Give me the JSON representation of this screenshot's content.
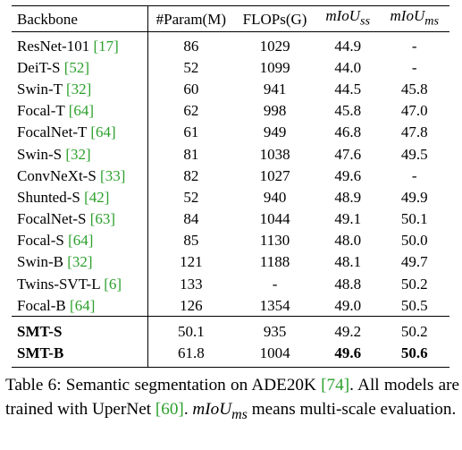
{
  "table": {
    "headers": [
      "Backbone",
      "#Param(M)",
      "FLOPs(G)",
      "mIoU",
      "mIoU"
    ],
    "header_subscripts": [
      "",
      "",
      "",
      "ss",
      "ms"
    ],
    "rows": [
      {
        "name": "ResNet-101",
        "ref": "[17]",
        "param": "86",
        "flops": "1029",
        "miou_ss": "44.9",
        "miou_ms": "-"
      },
      {
        "name": "DeiT-S",
        "ref": "[52]",
        "param": "52",
        "flops": "1099",
        "miou_ss": "44.0",
        "miou_ms": "-"
      },
      {
        "name": "Swin-T",
        "ref": "[32]",
        "param": "60",
        "flops": "941",
        "miou_ss": "44.5",
        "miou_ms": "45.8"
      },
      {
        "name": "Focal-T",
        "ref": "[64]",
        "param": "62",
        "flops": "998",
        "miou_ss": "45.8",
        "miou_ms": "47.0"
      },
      {
        "name": "FocalNet-T",
        "ref": "[64]",
        "param": "61",
        "flops": "949",
        "miou_ss": "46.8",
        "miou_ms": "47.8"
      },
      {
        "name": "Swin-S",
        "ref": "[32]",
        "param": "81",
        "flops": "1038",
        "miou_ss": "47.6",
        "miou_ms": "49.5"
      },
      {
        "name": "ConvNeXt-S",
        "ref": "[33]",
        "param": "82",
        "flops": "1027",
        "miou_ss": "49.6",
        "miou_ms": "-"
      },
      {
        "name": "Shunted-S",
        "ref": "[42]",
        "param": "52",
        "flops": "940",
        "miou_ss": "48.9",
        "miou_ms": "49.9"
      },
      {
        "name": "FocalNet-S",
        "ref": "[63]",
        "param": "84",
        "flops": "1044",
        "miou_ss": "49.1",
        "miou_ms": "50.1"
      },
      {
        "name": "Focal-S",
        "ref": "[64]",
        "param": "85",
        "flops": "1130",
        "miou_ss": "48.0",
        "miou_ms": "50.0"
      },
      {
        "name": "Swin-B",
        "ref": "[32]",
        "param": "121",
        "flops": "1188",
        "miou_ss": "48.1",
        "miou_ms": "49.7"
      },
      {
        "name": "Twins-SVT-L",
        "ref": "[6]",
        "param": "133",
        "flops": "-",
        "miou_ss": "48.8",
        "miou_ms": "50.2"
      },
      {
        "name": "Focal-B",
        "ref": "[64]",
        "param": "126",
        "flops": "1354",
        "miou_ss": "49.0",
        "miou_ms": "50.5"
      },
      {
        "name": "SMT-S",
        "ref": "",
        "param": "50.1",
        "flops": "935",
        "miou_ss": "49.2",
        "miou_ms": "50.2"
      },
      {
        "name": "SMT-B",
        "ref": "",
        "param": "61.8",
        "flops": "1004",
        "miou_ss": "49.6",
        "miou_ms": "50.6"
      }
    ]
  },
  "caption": {
    "seg1": "Table 6:  Semantic segmentation on ADE20K ",
    "ref1": "[74]",
    "seg2": ".  All models are trained with UperNet ",
    "ref2": "[60]",
    "seg3": ".  ",
    "math": "mIoU",
    "math_sub": "ms",
    "seg4": " means multi-scale evaluation."
  },
  "colors": {
    "citation": "#2ca02c",
    "text": "#000000"
  }
}
